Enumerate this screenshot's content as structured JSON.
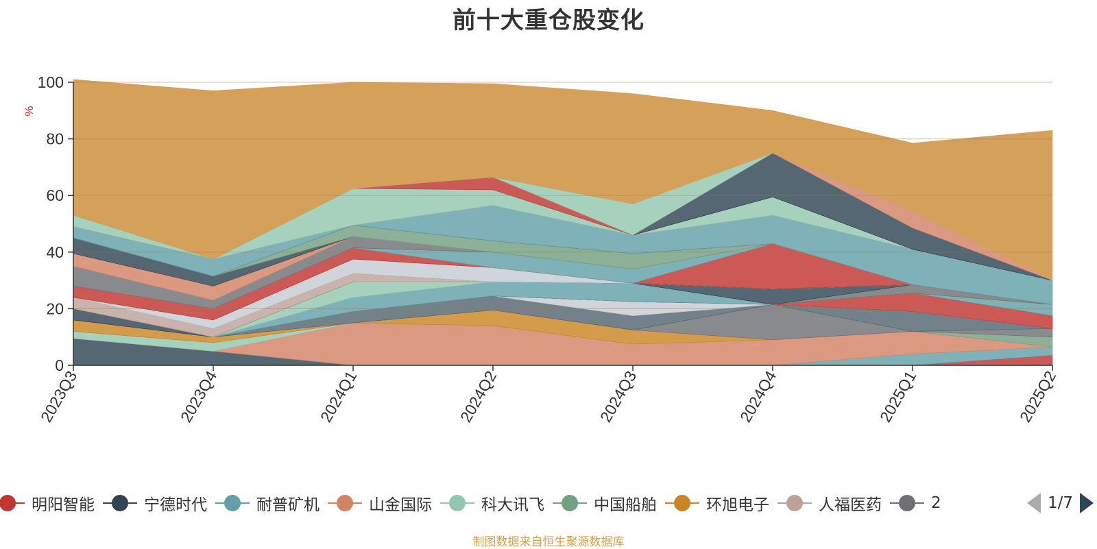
{
  "chart_data": {
    "type": "area",
    "stacked": true,
    "title": "前十大重仓股变化",
    "ylabel": "%",
    "ylim": [
      0,
      100
    ],
    "yticks": [
      0,
      20,
      40,
      60,
      80,
      100
    ],
    "grid": true,
    "x": [
      "2023Q3",
      "2023Q4",
      "2024Q1",
      "2024Q2",
      "2024Q3",
      "2024Q4",
      "2025Q1",
      "2025Q2"
    ],
    "series": [
      {
        "name": "明阳智能",
        "color": "#c23531",
        "values": [
          0,
          0,
          0,
          0,
          0,
          0,
          0,
          3.5
        ]
      },
      {
        "name": "宁德时代",
        "color": "#2f4554",
        "values": [
          9.5,
          5,
          0,
          0,
          0,
          0,
          0,
          0
        ]
      },
      {
        "name": "耐普矿机",
        "color": "#61a0a8",
        "values": [
          0,
          0,
          0,
          0,
          0,
          0,
          4,
          3
        ]
      },
      {
        "name": "山金国际",
        "color": "#d48265",
        "values": [
          0,
          0,
          15,
          14,
          7.5,
          9,
          8,
          0
        ]
      },
      {
        "name": "科大讯飞",
        "color": "#91c7ae",
        "values": [
          2.5,
          3,
          0,
          0,
          0,
          0,
          0,
          0
        ]
      },
      {
        "name": "中国船舶",
        "color": "#749f83",
        "values": [
          0,
          0,
          0,
          0,
          0,
          0,
          0,
          3.5
        ]
      },
      {
        "name": "环旭电子",
        "color": "#ca8622",
        "values": [
          4,
          2,
          0,
          5.5,
          5,
          0,
          0,
          0
        ]
      },
      {
        "name": "人福医药",
        "color": "#bda29a",
        "values": [
          0,
          0,
          0,
          0,
          0,
          0,
          0,
          0
        ]
      },
      {
        "name": "",
        "color": "#6e7074",
        "values": [
          0,
          0,
          0,
          0,
          0,
          12.5,
          0,
          3
        ]
      },
      {
        "name": "",
        "color": "#546570",
        "values": [
          0,
          0,
          4,
          5,
          5,
          0,
          7,
          0
        ]
      },
      {
        "name": "",
        "color": "#c4ccd3",
        "values": [
          0,
          0,
          0,
          0,
          5,
          0,
          0,
          0
        ]
      },
      {
        "name": "",
        "color": "#c23531",
        "values": [
          0,
          0,
          0,
          0,
          0,
          0,
          6.5,
          4.5
        ]
      },
      {
        "name": "",
        "color": "#2f4554",
        "values": [
          4,
          0,
          0,
          0,
          0,
          0,
          0,
          0
        ]
      },
      {
        "name": "",
        "color": "#61a0a8",
        "values": [
          0,
          0,
          5,
          5,
          6.5,
          0,
          0,
          4
        ]
      },
      {
        "name": "",
        "color": "#91c7ae",
        "values": [
          0,
          0,
          5.5,
          0,
          0,
          0,
          0,
          0
        ]
      },
      {
        "name": "",
        "color": "#749f83",
        "values": [
          0,
          0,
          0,
          0,
          0,
          0,
          0,
          0
        ]
      },
      {
        "name": "",
        "color": "#ca8622",
        "values": [
          0,
          0,
          0,
          0,
          0,
          0,
          0,
          0
        ]
      },
      {
        "name": "",
        "color": "#6e7074",
        "values": [
          0,
          0,
          0,
          0,
          0,
          0,
          3,
          0
        ]
      },
      {
        "name": "",
        "color": "#c23531",
        "values": [
          0,
          0,
          0,
          0,
          0,
          0,
          0,
          0
        ]
      },
      {
        "name": "",
        "color": "#61a0a8",
        "values": [
          0,
          0,
          0,
          0,
          0,
          0,
          0,
          0
        ]
      },
      {
        "name": "",
        "color": "#2f4554",
        "values": [
          0,
          0,
          0,
          0,
          0,
          5.5,
          0,
          0
        ]
      },
      {
        "name": "",
        "color": "#bda29a",
        "values": [
          4,
          3,
          3,
          0,
          0,
          0,
          0,
          0
        ]
      },
      {
        "name": "",
        "color": "#546570",
        "values": [
          0,
          0,
          0,
          0,
          0,
          0,
          0,
          0
        ]
      },
      {
        "name": "",
        "color": "#c4ccd3",
        "values": [
          0,
          3,
          5,
          5,
          0,
          0,
          0,
          0
        ]
      },
      {
        "name": "",
        "color": "#91c7ae",
        "values": [
          0,
          0,
          0,
          0,
          0,
          0,
          0,
          0
        ]
      },
      {
        "name": "",
        "color": "#c23531",
        "values": [
          4,
          4,
          4,
          0,
          0,
          16,
          0,
          0
        ]
      },
      {
        "name": "",
        "color": "#61a0a8",
        "values": [
          0,
          0,
          0,
          5.5,
          5,
          0,
          0,
          0
        ]
      },
      {
        "name": "",
        "color": "#ca8622",
        "values": [
          0,
          0,
          0,
          0,
          0,
          0,
          0,
          0
        ]
      },
      {
        "name": "",
        "color": "#6e7074",
        "values": [
          7,
          3,
          4,
          0,
          0,
          0,
          0,
          0
        ]
      },
      {
        "name": "",
        "color": "#bda29a",
        "values": [
          0,
          0,
          0,
          0,
          0,
          0,
          0,
          0
        ]
      },
      {
        "name": "",
        "color": "#d48265",
        "values": [
          4.5,
          5,
          0,
          0,
          0,
          0,
          0,
          0
        ]
      },
      {
        "name": "",
        "color": "#2f4554",
        "values": [
          5.5,
          3.5,
          0,
          0,
          0,
          0,
          0,
          0
        ]
      },
      {
        "name": "",
        "color": "#91c7ae",
        "values": [
          0,
          0,
          0,
          0,
          0,
          0,
          0,
          0
        ]
      },
      {
        "name": "",
        "color": "#749f83",
        "values": [
          0,
          0,
          4,
          4,
          5.5,
          0,
          0,
          0
        ]
      },
      {
        "name": "",
        "color": "#ca8622",
        "values": [
          0,
          0,
          0,
          0,
          0,
          0,
          0,
          0
        ]
      },
      {
        "name": "",
        "color": "#c23531",
        "values": [
          0,
          0,
          0,
          0,
          0,
          0,
          0,
          0
        ]
      },
      {
        "name": "",
        "color": "#bda29a",
        "values": [
          0,
          0,
          0,
          0,
          0,
          0,
          0,
          0
        ]
      },
      {
        "name": "",
        "color": "#6e7074",
        "values": [
          0,
          0,
          0,
          0,
          0,
          0,
          0,
          0
        ]
      },
      {
        "name": "",
        "color": "#546570",
        "values": [
          0,
          0,
          0,
          0,
          0,
          0,
          0,
          0
        ]
      },
      {
        "name": "",
        "color": "#61a0a8",
        "values": [
          4,
          6,
          0,
          12.5,
          6.5,
          10,
          12.5,
          8.5
        ]
      },
      {
        "name": "",
        "color": "#d48265",
        "values": [
          0,
          0,
          0,
          0,
          0,
          0,
          0,
          0
        ]
      },
      {
        "name": "",
        "color": "#91c7ae",
        "values": [
          0,
          0,
          13,
          5.5,
          0,
          6.5,
          0,
          0
        ]
      },
      {
        "name": "",
        "color": "#c23531",
        "values": [
          0,
          0,
          0,
          4.5,
          0,
          0,
          0,
          0
        ]
      },
      {
        "name": "",
        "color": "#749f83",
        "values": [
          0,
          0,
          0,
          0,
          0,
          0,
          0,
          0
        ]
      },
      {
        "name": "",
        "color": "#ca8622",
        "values": [
          0,
          0,
          0,
          0,
          0,
          0,
          0,
          0
        ]
      },
      {
        "name": "",
        "color": "#6e7074",
        "values": [
          0,
          0,
          0,
          0,
          0,
          0,
          0,
          0
        ]
      },
      {
        "name": "",
        "color": "#2f4554",
        "values": [
          0,
          0,
          0,
          0,
          0,
          15.5,
          7.5,
          0
        ]
      },
      {
        "name": "",
        "color": "#d48265",
        "values": [
          0,
          0,
          0,
          0,
          0,
          0,
          6,
          0
        ]
      },
      {
        "name": "",
        "color": "#91c7ae",
        "values": [
          4,
          0,
          0,
          0,
          11,
          0,
          0,
          0
        ]
      },
      {
        "name": "",
        "color": "#d4a05a",
        "values": [
          48,
          59.5,
          37.5,
          33,
          39,
          15,
          24,
          53
        ]
      }
    ]
  },
  "legend": {
    "items": [
      {
        "label": "明阳智能",
        "color": "#c23531"
      },
      {
        "label": "宁德时代",
        "color": "#2f4554"
      },
      {
        "label": "耐普矿机",
        "color": "#61a0a8"
      },
      {
        "label": "山金国际",
        "color": "#d48265"
      },
      {
        "label": "科大讯飞",
        "color": "#91c7ae"
      },
      {
        "label": "中国船舶",
        "color": "#749f83"
      },
      {
        "label": "环旭电子",
        "color": "#ca8622"
      },
      {
        "label": "人福医药",
        "color": "#bda29a"
      },
      {
        "label": "2",
        "color": "#6e7074"
      }
    ],
    "page": "1/7"
  },
  "footer": "制图数据来自恒生聚源数据库"
}
